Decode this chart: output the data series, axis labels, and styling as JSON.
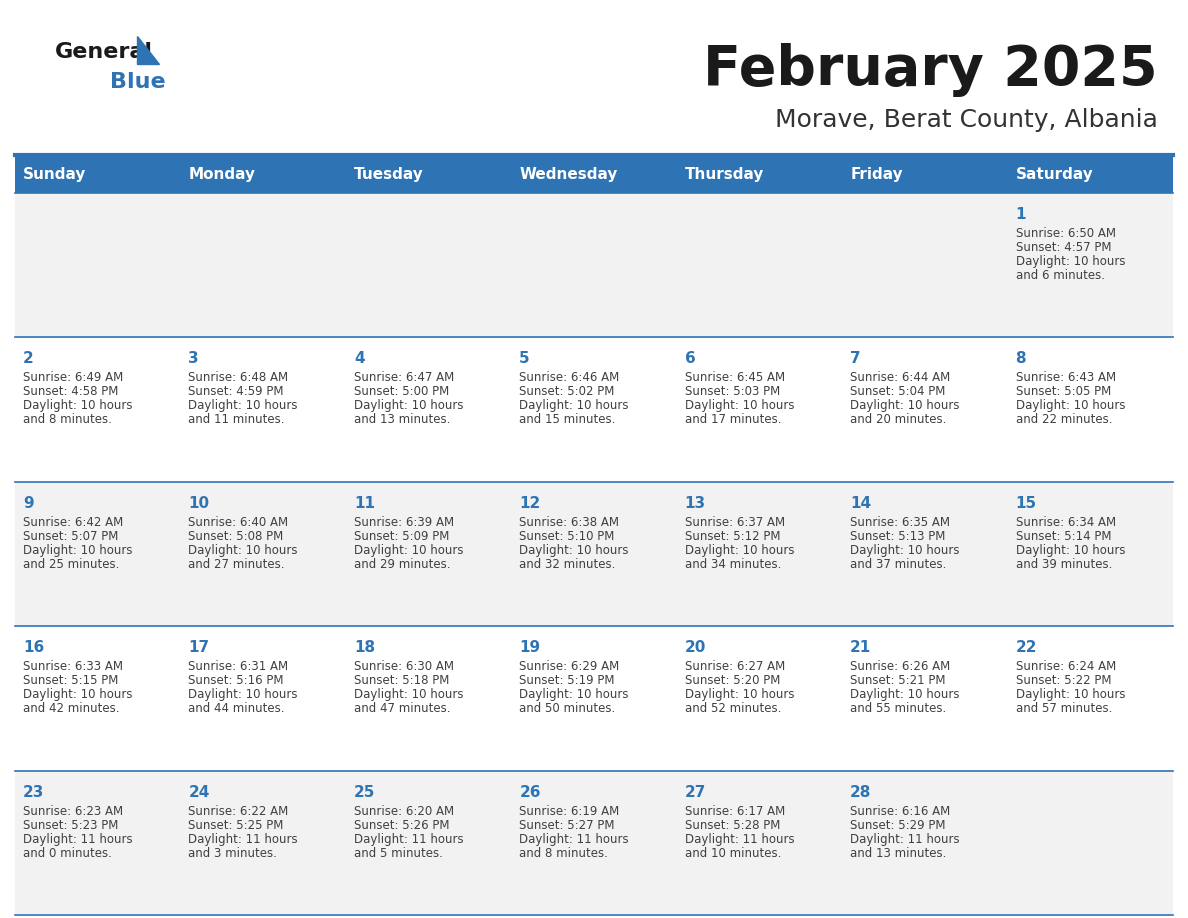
{
  "title": "February 2025",
  "subtitle": "Morave, Berat County, Albania",
  "days_of_week": [
    "Sunday",
    "Monday",
    "Tuesday",
    "Wednesday",
    "Thursday",
    "Friday",
    "Saturday"
  ],
  "header_bg": "#2E74B5",
  "header_text": "#FFFFFF",
  "row_bg_odd": "#F2F2F2",
  "row_bg_even": "#FFFFFF",
  "separator_color": "#2E74B5",
  "day_num_color": "#2E74B5",
  "cell_text_color": "#404040",
  "title_color": "#1a1a1a",
  "subtitle_color": "#333333",
  "logo_general_color": "#1a1a1a",
  "logo_blue_color": "#2E74B5",
  "logo_triangle_color": "#2E74B5",
  "calendar": [
    [
      {
        "day": null,
        "info": ""
      },
      {
        "day": null,
        "info": ""
      },
      {
        "day": null,
        "info": ""
      },
      {
        "day": null,
        "info": ""
      },
      {
        "day": null,
        "info": ""
      },
      {
        "day": null,
        "info": ""
      },
      {
        "day": 1,
        "info": "Sunrise: 6:50 AM\nSunset: 4:57 PM\nDaylight: 10 hours\nand 6 minutes."
      }
    ],
    [
      {
        "day": 2,
        "info": "Sunrise: 6:49 AM\nSunset: 4:58 PM\nDaylight: 10 hours\nand 8 minutes."
      },
      {
        "day": 3,
        "info": "Sunrise: 6:48 AM\nSunset: 4:59 PM\nDaylight: 10 hours\nand 11 minutes."
      },
      {
        "day": 4,
        "info": "Sunrise: 6:47 AM\nSunset: 5:00 PM\nDaylight: 10 hours\nand 13 minutes."
      },
      {
        "day": 5,
        "info": "Sunrise: 6:46 AM\nSunset: 5:02 PM\nDaylight: 10 hours\nand 15 minutes."
      },
      {
        "day": 6,
        "info": "Sunrise: 6:45 AM\nSunset: 5:03 PM\nDaylight: 10 hours\nand 17 minutes."
      },
      {
        "day": 7,
        "info": "Sunrise: 6:44 AM\nSunset: 5:04 PM\nDaylight: 10 hours\nand 20 minutes."
      },
      {
        "day": 8,
        "info": "Sunrise: 6:43 AM\nSunset: 5:05 PM\nDaylight: 10 hours\nand 22 minutes."
      }
    ],
    [
      {
        "day": 9,
        "info": "Sunrise: 6:42 AM\nSunset: 5:07 PM\nDaylight: 10 hours\nand 25 minutes."
      },
      {
        "day": 10,
        "info": "Sunrise: 6:40 AM\nSunset: 5:08 PM\nDaylight: 10 hours\nand 27 minutes."
      },
      {
        "day": 11,
        "info": "Sunrise: 6:39 AM\nSunset: 5:09 PM\nDaylight: 10 hours\nand 29 minutes."
      },
      {
        "day": 12,
        "info": "Sunrise: 6:38 AM\nSunset: 5:10 PM\nDaylight: 10 hours\nand 32 minutes."
      },
      {
        "day": 13,
        "info": "Sunrise: 6:37 AM\nSunset: 5:12 PM\nDaylight: 10 hours\nand 34 minutes."
      },
      {
        "day": 14,
        "info": "Sunrise: 6:35 AM\nSunset: 5:13 PM\nDaylight: 10 hours\nand 37 minutes."
      },
      {
        "day": 15,
        "info": "Sunrise: 6:34 AM\nSunset: 5:14 PM\nDaylight: 10 hours\nand 39 minutes."
      }
    ],
    [
      {
        "day": 16,
        "info": "Sunrise: 6:33 AM\nSunset: 5:15 PM\nDaylight: 10 hours\nand 42 minutes."
      },
      {
        "day": 17,
        "info": "Sunrise: 6:31 AM\nSunset: 5:16 PM\nDaylight: 10 hours\nand 44 minutes."
      },
      {
        "day": 18,
        "info": "Sunrise: 6:30 AM\nSunset: 5:18 PM\nDaylight: 10 hours\nand 47 minutes."
      },
      {
        "day": 19,
        "info": "Sunrise: 6:29 AM\nSunset: 5:19 PM\nDaylight: 10 hours\nand 50 minutes."
      },
      {
        "day": 20,
        "info": "Sunrise: 6:27 AM\nSunset: 5:20 PM\nDaylight: 10 hours\nand 52 minutes."
      },
      {
        "day": 21,
        "info": "Sunrise: 6:26 AM\nSunset: 5:21 PM\nDaylight: 10 hours\nand 55 minutes."
      },
      {
        "day": 22,
        "info": "Sunrise: 6:24 AM\nSunset: 5:22 PM\nDaylight: 10 hours\nand 57 minutes."
      }
    ],
    [
      {
        "day": 23,
        "info": "Sunrise: 6:23 AM\nSunset: 5:23 PM\nDaylight: 11 hours\nand 0 minutes."
      },
      {
        "day": 24,
        "info": "Sunrise: 6:22 AM\nSunset: 5:25 PM\nDaylight: 11 hours\nand 3 minutes."
      },
      {
        "day": 25,
        "info": "Sunrise: 6:20 AM\nSunset: 5:26 PM\nDaylight: 11 hours\nand 5 minutes."
      },
      {
        "day": 26,
        "info": "Sunrise: 6:19 AM\nSunset: 5:27 PM\nDaylight: 11 hours\nand 8 minutes."
      },
      {
        "day": 27,
        "info": "Sunrise: 6:17 AM\nSunset: 5:28 PM\nDaylight: 11 hours\nand 10 minutes."
      },
      {
        "day": 28,
        "info": "Sunrise: 6:16 AM\nSunset: 5:29 PM\nDaylight: 11 hours\nand 13 minutes."
      },
      {
        "day": null,
        "info": ""
      }
    ]
  ]
}
